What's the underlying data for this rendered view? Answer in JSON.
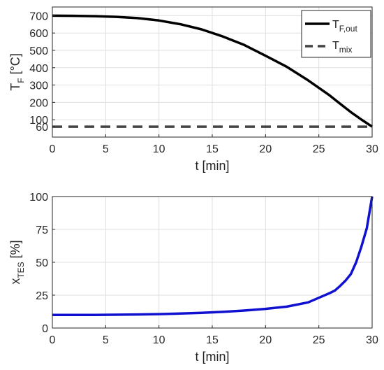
{
  "chart_data": [
    {
      "type": "line",
      "title": "",
      "xlabel": "t [min]",
      "ylabel": {
        "main": "T",
        "sub": "F",
        "rest": " [°C]"
      },
      "xlim": [
        0,
        30
      ],
      "ylim": [
        0,
        750
      ],
      "xticks": [
        0,
        5,
        10,
        15,
        20,
        25,
        30
      ],
      "yticks": [
        100,
        200,
        300,
        400,
        500,
        600,
        700
      ],
      "ytick_labels": [
        "100",
        "200",
        "300",
        "400",
        "500",
        "600",
        "700"
      ],
      "extra_ytick_label": "60",
      "grid": true,
      "legend": "top-right",
      "series": [
        {
          "name": {
            "main": "T",
            "sub": "F,out"
          },
          "style": "solid",
          "color": "#000000",
          "x": [
            0,
            2,
            4,
            6,
            8,
            10,
            12,
            14,
            16,
            18,
            20,
            22,
            24,
            26,
            27,
            28,
            29,
            30
          ],
          "y": [
            700,
            699,
            697,
            693,
            686,
            672,
            651,
            621,
            580,
            531,
            469,
            405,
            327,
            241,
            192,
            144,
            101,
            60
          ]
        },
        {
          "name": {
            "main": "T",
            "sub": "mix"
          },
          "style": "dashed",
          "color": "#444444",
          "x": [
            0,
            30
          ],
          "y": [
            60,
            60
          ]
        }
      ]
    },
    {
      "type": "line",
      "title": "",
      "xlabel": "t [min]",
      "ylabel": {
        "main": "x",
        "sub": "TES",
        "rest": " [%]"
      },
      "xlim": [
        0,
        30
      ],
      "ylim": [
        0,
        100
      ],
      "xticks": [
        0,
        5,
        10,
        15,
        20,
        25,
        30
      ],
      "yticks": [
        0,
        25,
        50,
        75,
        100
      ],
      "grid": true,
      "series": [
        {
          "name": "",
          "style": "solid",
          "color": "#1010d0",
          "x": [
            0,
            4,
            8,
            10,
            12,
            14,
            16,
            18,
            20,
            22,
            24,
            26,
            26.5,
            27,
            27.5,
            28,
            28.5,
            29,
            29.5,
            30
          ],
          "y": [
            10,
            10,
            10.3,
            10.6,
            11,
            11.6,
            12.3,
            13.3,
            14.6,
            16.3,
            19.5,
            26.5,
            28.5,
            32,
            36,
            41,
            50,
            62,
            76,
            100
          ]
        }
      ]
    }
  ]
}
